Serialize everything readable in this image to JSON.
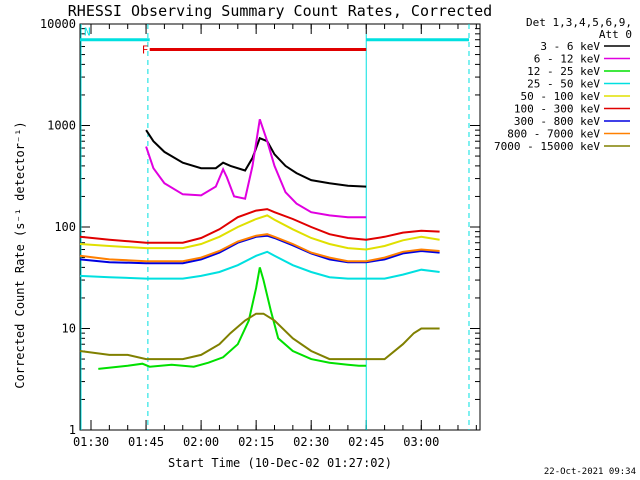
{
  "chart_data": {
    "type": "line",
    "title": "RHESSI Observing Summary Count Rates, Corrected",
    "xlabel": "Start Time (10-Dec-02 01:27:02)",
    "ylabel": "Corrected Count Rate (s⁻¹ detector⁻¹)",
    "y_scale": "log",
    "ylim": [
      1,
      10000
    ],
    "xlim_minutes": [
      87,
      196
    ],
    "x_ticks": [
      {
        "label": "01:30",
        "minute": 90
      },
      {
        "label": "01:45",
        "minute": 105
      },
      {
        "label": "02:00",
        "minute": 120
      },
      {
        "label": "02:15",
        "minute": 135
      },
      {
        "label": "02:30",
        "minute": 150
      },
      {
        "label": "02:45",
        "minute": 165
      },
      {
        "label": "03:00",
        "minute": 180
      }
    ],
    "y_ticks": [
      {
        "label": "1",
        "value": 1
      },
      {
        "label": "10",
        "value": 10
      },
      {
        "label": "100",
        "value": 100
      },
      {
        "label": "1000",
        "value": 1000
      },
      {
        "label": "10000",
        "value": 10000
      }
    ],
    "legend_header": [
      "Det 1,3,4,5,6,9,",
      "Att 0"
    ],
    "legend_position": "right",
    "series": [
      {
        "name": "3 - 6 keV",
        "color": "#000000",
        "x": [
          105,
          107,
          110,
          115,
          120,
          124,
          126,
          128,
          132,
          134,
          136,
          138,
          140,
          143,
          146,
          150,
          155,
          160,
          165
        ],
        "y": [
          900,
          700,
          550,
          430,
          380,
          380,
          430,
          400,
          360,
          480,
          750,
          700,
          520,
          400,
          340,
          290,
          270,
          255,
          250
        ]
      },
      {
        "name": "6 - 12 keV",
        "color": "#e000e0",
        "x": [
          105,
          107,
          110,
          115,
          120,
          124,
          126,
          127,
          129,
          132,
          134,
          136,
          138,
          140,
          143,
          146,
          150,
          155,
          160,
          165
        ],
        "y": [
          620,
          380,
          270,
          210,
          205,
          250,
          370,
          310,
          200,
          190,
          400,
          1150,
          700,
          400,
          220,
          170,
          140,
          130,
          125,
          125
        ]
      },
      {
        "name": "12 - 25 keV",
        "color": "#00e000",
        "x": [
          92,
          100,
          104,
          106,
          112,
          118,
          122,
          126,
          130,
          133,
          135,
          136,
          137,
          139,
          141,
          145,
          150,
          155,
          160,
          163,
          165
        ],
        "y": [
          4,
          4.3,
          4.5,
          4.2,
          4.4,
          4.2,
          4.6,
          5.2,
          7,
          12,
          25,
          40,
          30,
          15,
          8,
          6,
          5,
          4.6,
          4.4,
          4.3,
          4.3
        ]
      },
      {
        "name": "25 - 50 keV",
        "color": "#00e0e0",
        "x": [
          87,
          95,
          105,
          115,
          120,
          125,
          130,
          135,
          138,
          140,
          145,
          150,
          155,
          160,
          165,
          170,
          175,
          180,
          185
        ],
        "y": [
          33,
          32,
          31,
          31,
          33,
          36,
          42,
          52,
          57,
          52,
          42,
          36,
          32,
          31,
          31,
          31,
          34,
          38,
          36
        ]
      },
      {
        "name": "50 - 100 keV",
        "color": "#e0e000",
        "x": [
          87,
          95,
          105,
          115,
          120,
          125,
          130,
          135,
          138,
          140,
          145,
          150,
          155,
          160,
          165,
          170,
          175,
          180,
          185
        ],
        "y": [
          68,
          65,
          62,
          62,
          68,
          80,
          100,
          120,
          130,
          118,
          95,
          78,
          68,
          62,
          60,
          65,
          74,
          80,
          75
        ]
      },
      {
        "name": "100 - 300 keV",
        "color": "#e00000",
        "x": [
          87,
          95,
          105,
          115,
          120,
          125,
          130,
          135,
          138,
          140,
          145,
          150,
          155,
          160,
          165,
          170,
          175,
          180,
          185
        ],
        "y": [
          80,
          75,
          70,
          70,
          78,
          95,
          125,
          145,
          150,
          140,
          120,
          100,
          85,
          78,
          75,
          80,
          88,
          92,
          90
        ]
      },
      {
        "name": "300 - 800 keV",
        "color": "#0000e0",
        "x": [
          87,
          95,
          105,
          115,
          120,
          125,
          130,
          135,
          138,
          140,
          145,
          150,
          155,
          160,
          165,
          170,
          175,
          180,
          185
        ],
        "y": [
          48,
          45,
          44,
          44,
          48,
          56,
          70,
          80,
          82,
          78,
          66,
          55,
          48,
          45,
          45,
          48,
          55,
          58,
          56
        ]
      },
      {
        "name": "800 - 7000 keV",
        "color": "#ff8000",
        "x": [
          87,
          95,
          105,
          115,
          120,
          125,
          130,
          135,
          138,
          140,
          145,
          150,
          155,
          160,
          165,
          170,
          175,
          180,
          185
        ],
        "y": [
          52,
          48,
          46,
          46,
          50,
          58,
          72,
          82,
          85,
          80,
          68,
          56,
          50,
          46,
          46,
          50,
          57,
          60,
          58
        ]
      },
      {
        "name": "7000 - 15000 keV",
        "color": "#808000",
        "x": [
          87,
          95,
          100,
          105,
          110,
          115,
          120,
          125,
          128,
          132,
          135,
          137,
          140,
          145,
          150,
          155,
          160,
          165,
          170,
          175,
          178,
          180,
          185
        ],
        "y": [
          6,
          5.5,
          5.5,
          5,
          5,
          5,
          5.5,
          7,
          9,
          12,
          14,
          14,
          12,
          8,
          6,
          5,
          5,
          5,
          5,
          7,
          9,
          10,
          10
        ]
      }
    ],
    "flags": [
      {
        "label": "F",
        "color": "#e00000",
        "start_minute": 106,
        "end_minute": 165,
        "level": 5600
      },
      {
        "label": "N",
        "color": "#00e0e0",
        "start_minute": 87,
        "end_minute": 106,
        "level": 7000
      },
      {
        "label": "",
        "color": "#00e0e0",
        "start_minute": 165,
        "end_minute": 193,
        "level": 7000
      }
    ],
    "night_boundaries_minutes": [
      105.5,
      193
    ]
  },
  "timestamp": "22-Oct-2021 09:34"
}
